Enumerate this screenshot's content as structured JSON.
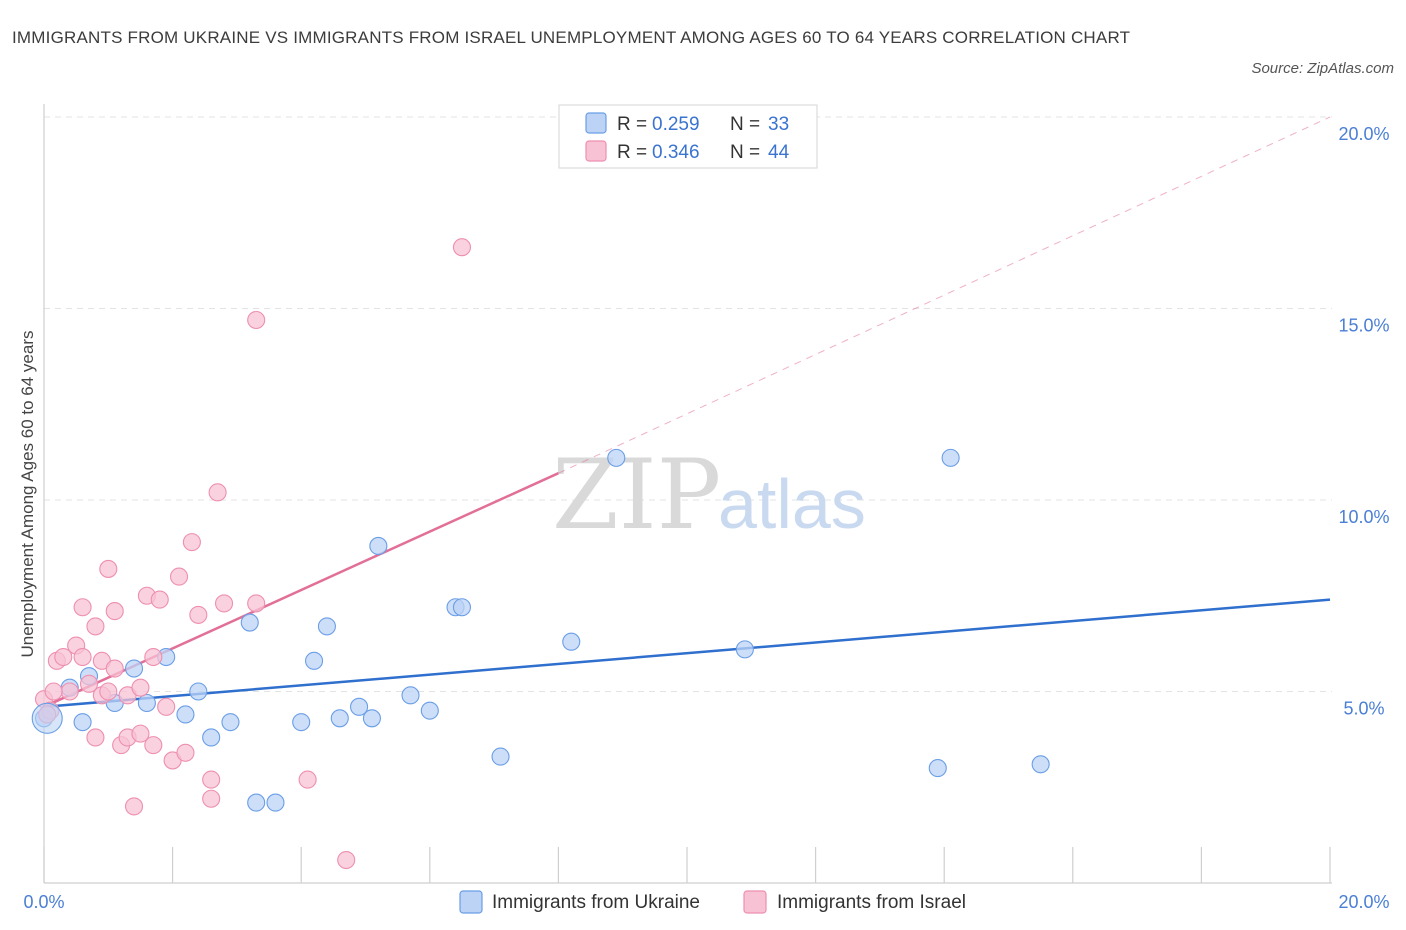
{
  "header": {
    "title": "IMMIGRANTS FROM UKRAINE VS IMMIGRANTS FROM ISRAEL UNEMPLOYMENT AMONG AGES 60 TO 64 YEARS CORRELATION CHART",
    "source": "Source: ZipAtlas.com"
  },
  "watermark": {
    "zip": "ZIP",
    "atlas": "atlas"
  },
  "chart_data": {
    "type": "scatter",
    "title": "IMMIGRANTS FROM UKRAINE VS IMMIGRANTS FROM ISRAEL UNEMPLOYMENT AMONG AGES 60 TO 64 YEARS CORRELATION CHART",
    "xlabel": "",
    "ylabel": "Unemployment Among Ages 60 to 64 years",
    "xlim": [
      0,
      20
    ],
    "ylim": [
      0,
      20
    ],
    "x_tick_labels": {
      "left": "0.0%",
      "right": "20.0%"
    },
    "y_ticks": [
      {
        "value": 20,
        "label": "20.0%"
      },
      {
        "value": 15,
        "label": "15.0%"
      },
      {
        "value": 10,
        "label": "10.0%"
      },
      {
        "value": 5,
        "label": "5.0%"
      }
    ],
    "legend": {
      "entries": [
        {
          "r_label": "R = ",
          "r_value": "0.259",
          "n_label": "N = ",
          "n_value": "33"
        },
        {
          "r_label": "R = ",
          "r_value": "0.346",
          "n_label": "N = ",
          "n_value": "44"
        }
      ]
    },
    "series": [
      {
        "name": "Immigrants from Ukraine",
        "color": "#6a9ee6",
        "fill": "#bcd3f5",
        "line_color": "#2f6fce",
        "trend": {
          "x0": 0,
          "y0": 4.6,
          "x1": 20,
          "y1": 7.4
        },
        "points": [
          [
            0.0,
            4.3
          ],
          [
            0.4,
            5.1
          ],
          [
            0.6,
            4.2
          ],
          [
            0.7,
            5.4
          ],
          [
            1.1,
            4.7
          ],
          [
            1.4,
            5.6
          ],
          [
            1.6,
            4.7
          ],
          [
            1.9,
            5.9
          ],
          [
            2.2,
            4.4
          ],
          [
            2.4,
            5.0
          ],
          [
            2.6,
            3.8
          ],
          [
            2.9,
            4.2
          ],
          [
            3.2,
            6.8
          ],
          [
            3.3,
            2.1
          ],
          [
            3.6,
            2.1
          ],
          [
            4.0,
            4.2
          ],
          [
            4.2,
            5.8
          ],
          [
            4.4,
            6.7
          ],
          [
            4.6,
            4.3
          ],
          [
            4.9,
            4.6
          ],
          [
            5.1,
            4.3
          ],
          [
            5.2,
            8.8
          ],
          [
            5.7,
            4.9
          ],
          [
            6.0,
            4.5
          ],
          [
            6.4,
            7.2
          ],
          [
            6.5,
            7.2
          ],
          [
            7.1,
            3.3
          ],
          [
            8.2,
            6.3
          ],
          [
            8.9,
            11.1
          ],
          [
            10.9,
            6.1
          ],
          [
            13.9,
            3.0
          ],
          [
            14.1,
            11.1
          ],
          [
            15.5,
            3.1
          ]
        ]
      },
      {
        "name": "Immigrants from Israel",
        "color": "#ee8fb0",
        "fill": "#f7c2d4",
        "line_color": "#e26f98",
        "trend": {
          "x0": 0,
          "y0": 4.6,
          "x1": 8.0,
          "y1": 10.7,
          "dash_to_x": 20,
          "dash_to_y": 20.0
        },
        "points": [
          [
            0.0,
            4.8
          ],
          [
            0.1,
            4.5
          ],
          [
            0.2,
            5.8
          ],
          [
            0.3,
            5.9
          ],
          [
            0.4,
            5.0
          ],
          [
            0.5,
            6.2
          ],
          [
            0.6,
            5.9
          ],
          [
            0.6,
            7.2
          ],
          [
            0.7,
            5.2
          ],
          [
            0.8,
            6.7
          ],
          [
            0.8,
            3.8
          ],
          [
            0.9,
            5.8
          ],
          [
            0.9,
            4.9
          ],
          [
            1.0,
            5.0
          ],
          [
            1.0,
            8.2
          ],
          [
            1.1,
            5.6
          ],
          [
            1.1,
            7.1
          ],
          [
            1.2,
            3.6
          ],
          [
            1.3,
            3.8
          ],
          [
            1.3,
            4.9
          ],
          [
            1.4,
            2.0
          ],
          [
            1.5,
            3.9
          ],
          [
            1.5,
            5.1
          ],
          [
            1.6,
            7.5
          ],
          [
            1.7,
            5.9
          ],
          [
            1.7,
            3.6
          ],
          [
            1.8,
            7.4
          ],
          [
            1.9,
            4.6
          ],
          [
            2.0,
            3.2
          ],
          [
            2.1,
            8.0
          ],
          [
            2.2,
            3.4
          ],
          [
            2.3,
            8.9
          ],
          [
            2.4,
            7.0
          ],
          [
            2.6,
            2.2
          ],
          [
            2.6,
            2.7
          ],
          [
            2.7,
            10.2
          ],
          [
            2.8,
            7.3
          ],
          [
            3.3,
            14.7
          ],
          [
            3.3,
            7.3
          ],
          [
            4.1,
            2.7
          ],
          [
            4.7,
            0.6
          ],
          [
            6.5,
            16.6
          ],
          [
            0.05,
            4.4
          ],
          [
            0.15,
            5.0
          ]
        ]
      }
    ]
  }
}
